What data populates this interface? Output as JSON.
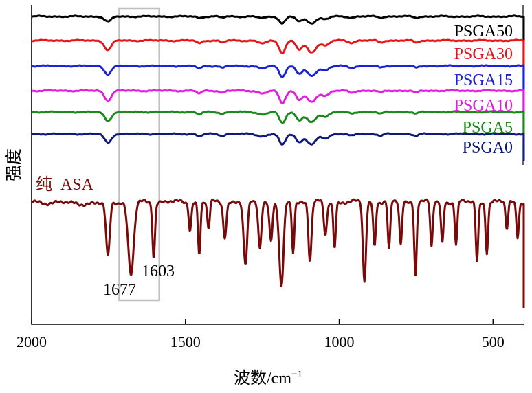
{
  "chart_data": {
    "type": "line",
    "title": "",
    "xlabel": "波数/cm",
    "xlabel_superscript": "−1",
    "ylabel": "强度",
    "xlim": [
      2000,
      400
    ],
    "x_reversed": true,
    "x_ticks": [
      2000,
      1500,
      1000,
      500
    ],
    "x_tick_labels": [
      "2000",
      "1500",
      "1000",
      "500"
    ],
    "y_ticks": false,
    "legend": "inline-right",
    "highlight_box": {
      "x_range": [
        1715,
        1585
      ],
      "stroke": "#bfbfbf"
    },
    "annotations": [
      {
        "text": "1677",
        "x": 1677
      },
      {
        "text": "1603",
        "x": 1603
      }
    ],
    "pure_label": "纯  ASA",
    "series": [
      {
        "name": "PSGA50",
        "color": "#000000",
        "baseline": 0,
        "scale": 0.55,
        "style": "pol"
      },
      {
        "name": "PSGA30",
        "color": "#e8141b",
        "baseline": 1,
        "scale": 1.0,
        "style": "pol"
      },
      {
        "name": "PSGA15",
        "color": "#1a22d6",
        "baseline": 2,
        "scale": 0.85,
        "style": "pol"
      },
      {
        "name": "PSGA10",
        "color": "#e01ee0",
        "baseline": 3,
        "scale": 1.0,
        "style": "pol"
      },
      {
        "name": "PSGA5",
        "color": "#1a8a1a",
        "baseline": 4,
        "scale": 0.9,
        "style": "pol"
      },
      {
        "name": "PSGA0",
        "color": "#101a7a",
        "baseline": 5,
        "scale": 0.9,
        "style": "pol"
      },
      {
        "name": "纯 ASA",
        "color": "#7a0a0a",
        "baseline": 6,
        "scale": 1.0,
        "style": "asa"
      }
    ],
    "polymer_peaks": [
      {
        "x": 1752,
        "depth": 14,
        "width": 11
      },
      {
        "x": 1455,
        "depth": 4,
        "width": 8
      },
      {
        "x": 1380,
        "depth": 3,
        "width": 8
      },
      {
        "x": 1250,
        "depth": 4,
        "width": 14
      },
      {
        "x": 1185,
        "depth": 18,
        "width": 10
      },
      {
        "x": 1130,
        "depth": 13,
        "width": 10
      },
      {
        "x": 1090,
        "depth": 17,
        "width": 15
      },
      {
        "x": 1045,
        "depth": 7,
        "width": 12
      },
      {
        "x": 960,
        "depth": 3,
        "width": 10
      },
      {
        "x": 865,
        "depth": 3,
        "width": 8
      },
      {
        "x": 750,
        "depth": 3,
        "width": 8
      }
    ],
    "asa_peaks": [
      {
        "x": 1752,
        "depth": 80,
        "width": 6
      },
      {
        "x": 1677,
        "depth": 106,
        "width": 9
      },
      {
        "x": 1603,
        "depth": 80,
        "width": 4
      },
      {
        "x": 1485,
        "depth": 40,
        "width": 4
      },
      {
        "x": 1455,
        "depth": 76,
        "width": 4
      },
      {
        "x": 1425,
        "depth": 40,
        "width": 4
      },
      {
        "x": 1372,
        "depth": 50,
        "width": 5
      },
      {
        "x": 1305,
        "depth": 92,
        "width": 6
      },
      {
        "x": 1258,
        "depth": 66,
        "width": 5
      },
      {
        "x": 1222,
        "depth": 56,
        "width": 5
      },
      {
        "x": 1188,
        "depth": 125,
        "width": 7
      },
      {
        "x": 1150,
        "depth": 72,
        "width": 4
      },
      {
        "x": 1095,
        "depth": 85,
        "width": 5
      },
      {
        "x": 1045,
        "depth": 48,
        "width": 5
      },
      {
        "x": 1015,
        "depth": 66,
        "width": 4
      },
      {
        "x": 918,
        "depth": 116,
        "width": 5
      },
      {
        "x": 885,
        "depth": 64,
        "width": 4
      },
      {
        "x": 838,
        "depth": 70,
        "width": 4
      },
      {
        "x": 800,
        "depth": 62,
        "width": 4
      },
      {
        "x": 752,
        "depth": 105,
        "width": 4
      },
      {
        "x": 700,
        "depth": 66,
        "width": 4
      },
      {
        "x": 665,
        "depth": 60,
        "width": 4
      },
      {
        "x": 620,
        "depth": 62,
        "width": 4
      },
      {
        "x": 552,
        "depth": 86,
        "width": 4
      },
      {
        "x": 520,
        "depth": 72,
        "width": 4
      },
      {
        "x": 455,
        "depth": 40,
        "width": 4
      },
      {
        "x": 420,
        "depth": 50,
        "width": 4
      }
    ]
  }
}
